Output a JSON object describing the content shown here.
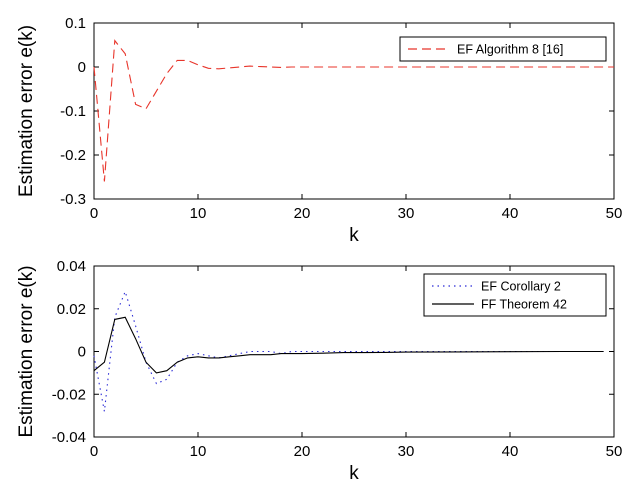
{
  "chart_data": [
    {
      "type": "line",
      "title": "",
      "xlabel": "k",
      "ylabel": "Estimation error e(k)",
      "xlim": [
        0,
        50
      ],
      "ylim": [
        -0.3,
        0.1
      ],
      "xticks": [
        "0",
        "10",
        "20",
        "30",
        "40",
        "50"
      ],
      "yticks": [
        "0.1",
        "0",
        "-0.1",
        "-0.2",
        "-0.3"
      ],
      "grid": false,
      "legend": "top-right",
      "series": [
        {
          "name": "EF Algorithm 8 [16]",
          "color": "#e8352b",
          "style": "dashed",
          "x": [
            0,
            1,
            2,
            3,
            4,
            5,
            6,
            7,
            8,
            9,
            10,
            11,
            12,
            13,
            14,
            15,
            16,
            17,
            18,
            19,
            20,
            22,
            24,
            26,
            28,
            30,
            35,
            40,
            45,
            50
          ],
          "values": [
            0.0,
            -0.26,
            0.06,
            0.03,
            -0.085,
            -0.095,
            -0.055,
            -0.015,
            0.015,
            0.015,
            0.005,
            -0.003,
            -0.004,
            -0.002,
            0.0,
            0.002,
            0.001,
            0.0,
            -0.001,
            0.0,
            0.0,
            0.0,
            0.0,
            0.0,
            0.0,
            0.0,
            0.0,
            0.0,
            0.0,
            0.0
          ]
        }
      ]
    },
    {
      "type": "line",
      "title": "",
      "xlabel": "k",
      "ylabel": "Estimation error e(k)",
      "xlim": [
        0,
        50
      ],
      "ylim": [
        -0.04,
        0.04
      ],
      "xticks": [
        "0",
        "10",
        "20",
        "30",
        "40",
        "50"
      ],
      "yticks": [
        "0.04",
        "0.02",
        "0",
        "-0.02",
        "-0.04"
      ],
      "grid": false,
      "legend": "top-right",
      "series": [
        {
          "name": "EF Corollary 2",
          "color": "#2b2bd6",
          "style": "dotted",
          "x": [
            0,
            1,
            2,
            3,
            4,
            5,
            6,
            7,
            8,
            9,
            10,
            11,
            12,
            13,
            14,
            15,
            16,
            17,
            18,
            19,
            20,
            21,
            22,
            23,
            24,
            25,
            26,
            28,
            30,
            35,
            40,
            45,
            49
          ],
          "values": [
            -0.002,
            -0.028,
            0.016,
            0.028,
            0.012,
            -0.005,
            -0.015,
            -0.013,
            -0.005,
            -0.002,
            -0.001,
            -0.002,
            -0.003,
            -0.002,
            -0.001,
            0.0,
            0.0,
            0.0,
            -0.001,
            0.0,
            0.0,
            0.0,
            0.0,
            0.0,
            0.0,
            0.0,
            0.0,
            0.0,
            0.0,
            0.0,
            0.0,
            0.0,
            0.0
          ]
        },
        {
          "name": "FF Theorem 42",
          "color": "#000000",
          "style": "solid",
          "x": [
            0,
            1,
            2,
            3,
            4,
            5,
            6,
            7,
            8,
            9,
            10,
            11,
            12,
            13,
            14,
            15,
            16,
            17,
            18,
            19,
            20,
            22,
            24,
            26,
            28,
            30,
            35,
            40,
            45,
            49
          ],
          "values": [
            -0.009,
            -0.005,
            0.015,
            0.016,
            0.006,
            -0.005,
            -0.01,
            -0.009,
            -0.005,
            -0.003,
            -0.0025,
            -0.003,
            -0.003,
            -0.0025,
            -0.002,
            -0.0015,
            -0.0015,
            -0.0015,
            -0.001,
            -0.001,
            -0.001,
            -0.0008,
            -0.0005,
            -0.0005,
            -0.0004,
            -0.0003,
            -0.0002,
            -0.0001,
            0.0,
            0.0
          ]
        }
      ]
    }
  ]
}
